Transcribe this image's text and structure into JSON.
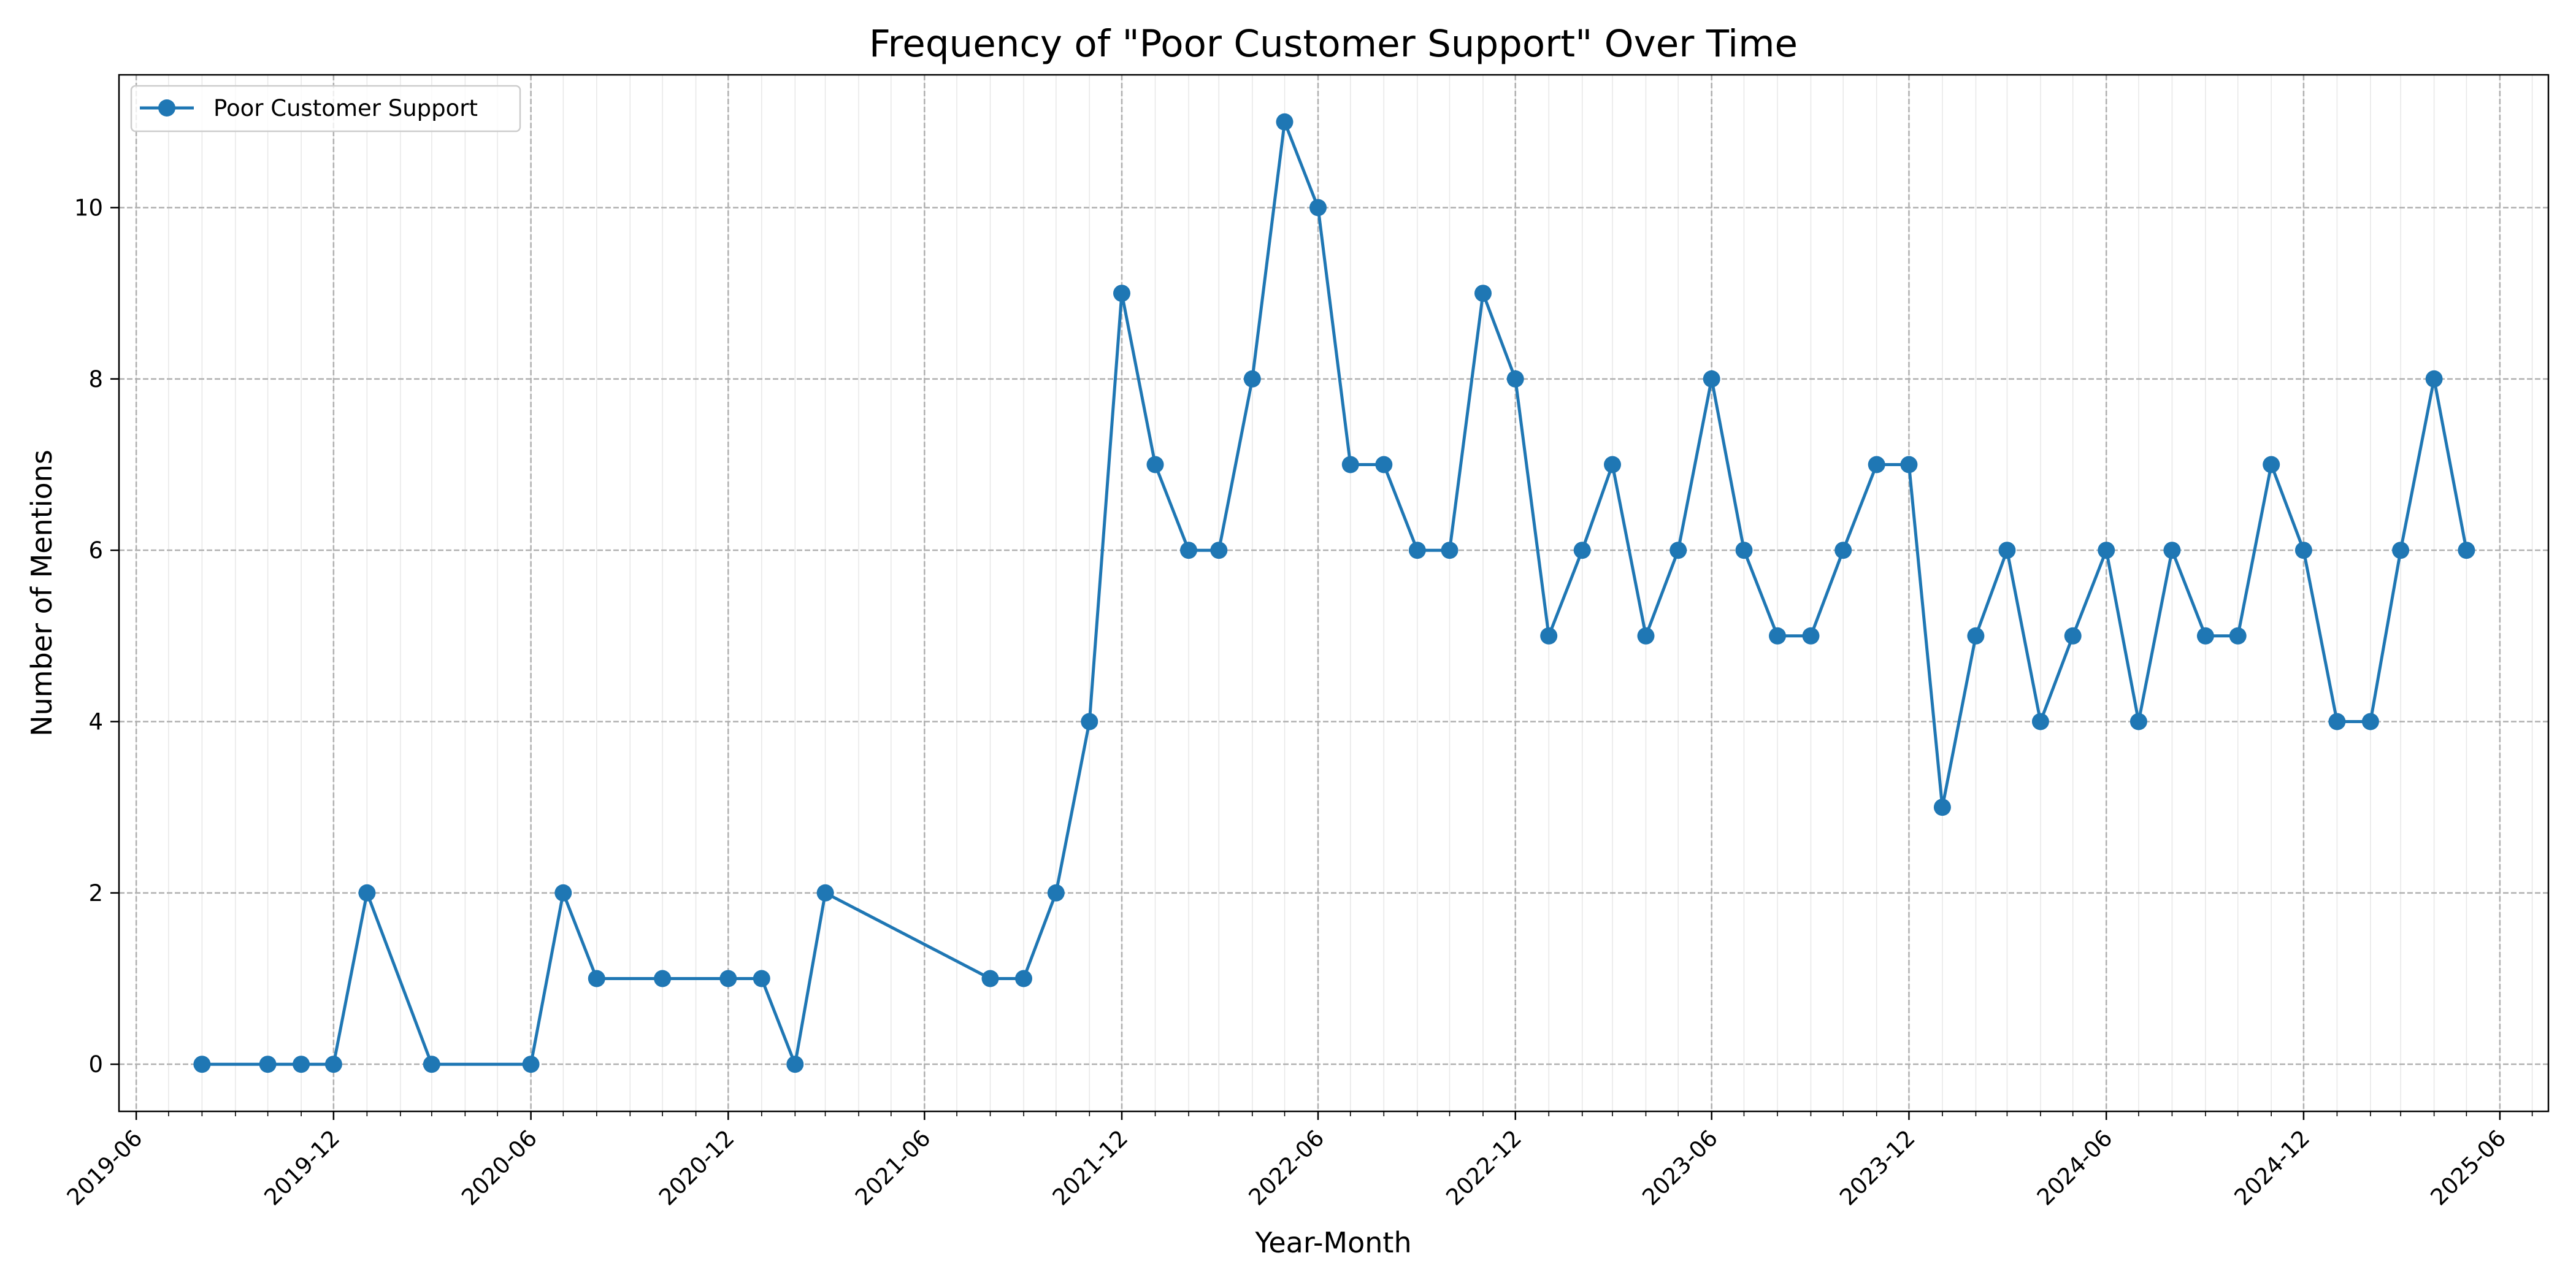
{
  "chart_data": {
    "type": "line",
    "title": "Frequency of \"Poor Customer Support\" Over Time",
    "xlabel": "Year-Month",
    "ylabel": "Number of Mentions",
    "xlim": [
      "2019-05-16",
      "2025-07-16"
    ],
    "ylim": [
      -0.55,
      11.55
    ],
    "x_ticks": [
      "2019-06",
      "2019-12",
      "2020-06",
      "2020-12",
      "2021-06",
      "2021-12",
      "2022-06",
      "2022-12",
      "2023-06",
      "2023-12",
      "2024-06",
      "2024-12",
      "2025-06"
    ],
    "y_ticks": [
      0,
      2,
      4,
      6,
      8,
      10
    ],
    "grid": true,
    "legend_position": "top-left",
    "series": [
      {
        "name": "Poor Customer Support",
        "color": "#1f77b4",
        "marker": "circle",
        "x": [
          "2019-08",
          "2019-10",
          "2019-11",
          "2019-12",
          "2020-01",
          "2020-03",
          "2020-06",
          "2020-07",
          "2020-08",
          "2020-10",
          "2020-12",
          "2021-01",
          "2021-02",
          "2021-03",
          "2021-08",
          "2021-09",
          "2021-10",
          "2021-11",
          "2021-12",
          "2022-01",
          "2022-02",
          "2022-03",
          "2022-04",
          "2022-05",
          "2022-06",
          "2022-07",
          "2022-08",
          "2022-09",
          "2022-10",
          "2022-11",
          "2022-12",
          "2023-01",
          "2023-02",
          "2023-03",
          "2023-04",
          "2023-05",
          "2023-06",
          "2023-07",
          "2023-08",
          "2023-09",
          "2023-10",
          "2023-11",
          "2023-12",
          "2024-01",
          "2024-02",
          "2024-03",
          "2024-04",
          "2024-05",
          "2024-06",
          "2024-07",
          "2024-08",
          "2024-09",
          "2024-10",
          "2024-11",
          "2024-12",
          "2025-01",
          "2025-02",
          "2025-03",
          "2025-04",
          "2025-05"
        ],
        "values": [
          0,
          0,
          0,
          0,
          2,
          0,
          0,
          2,
          1,
          1,
          1,
          1,
          0,
          2,
          1,
          1,
          2,
          4,
          9,
          7,
          6,
          6,
          8,
          11,
          10,
          7,
          7,
          6,
          6,
          9,
          8,
          5,
          6,
          7,
          5,
          6,
          8,
          6,
          5,
          5,
          6,
          7,
          7,
          3,
          5,
          6,
          4,
          5,
          6,
          4,
          6,
          5,
          5,
          7,
          6,
          4,
          4,
          6,
          8,
          6
        ]
      }
    ]
  }
}
